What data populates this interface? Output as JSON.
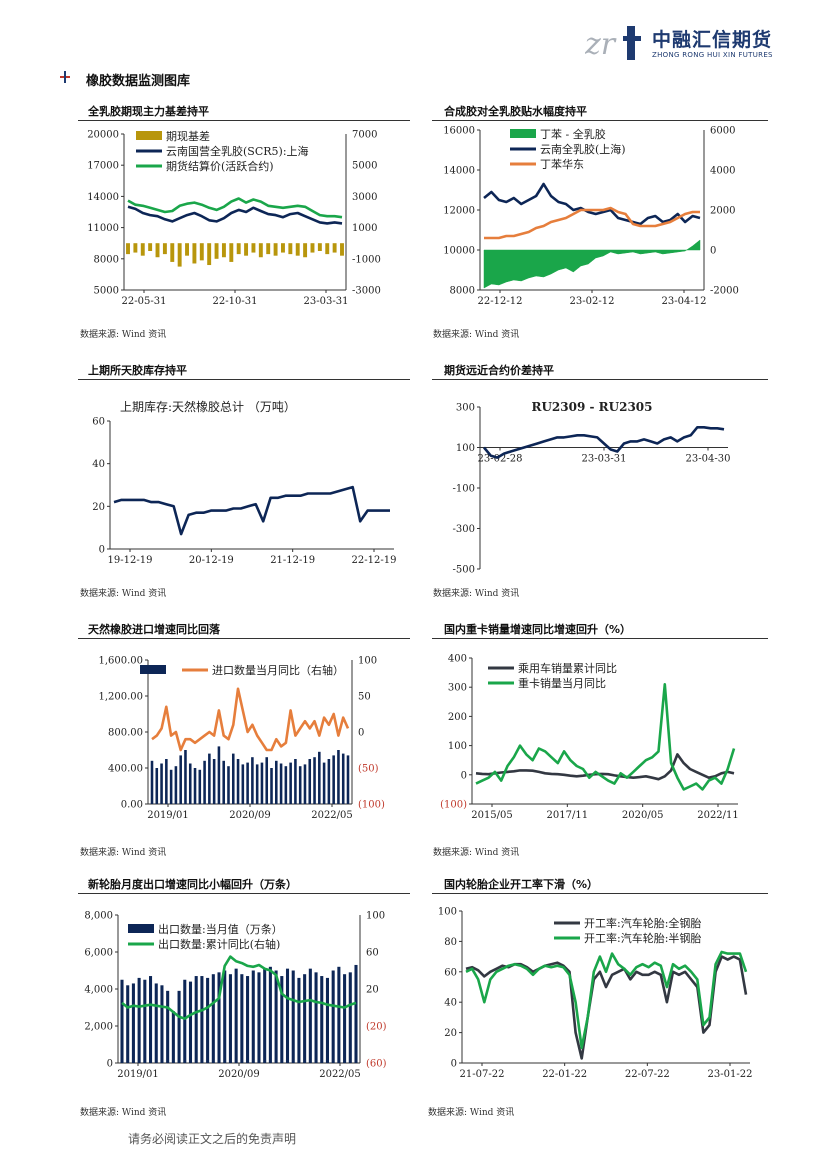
{
  "header": {
    "logo_cn": "中融汇信期货",
    "logo_en": "ZHONG RONG HUI XIN FUTURES",
    "section_title": "橡胶数据监测图库"
  },
  "footer": {
    "disclaimer": "请务必阅读正文之后的免责声明"
  },
  "source_label": "数据来源: Wind 资讯",
  "colors": {
    "navy": "#0d2656",
    "green": "#1aa64a",
    "gold": "#b8960c",
    "orange": "#e67e3c",
    "dark": "#333842",
    "red": "#c0392b"
  },
  "chart_data": [
    {
      "id": "c1",
      "type": "line",
      "title": "全乳胶期现主力基差持平",
      "x_ticks": [
        "22-05-31",
        "22-10-31",
        "23-03-31"
      ],
      "y_left": {
        "ticks": [
          "20000",
          "17000",
          "14000",
          "11000",
          "8000",
          "5000"
        ],
        "range": [
          5000,
          20000
        ]
      },
      "y_right": {
        "ticks": [
          "7000",
          "5000",
          "3000",
          "1000",
          "-1000",
          "-3000"
        ],
        "range": [
          -3000,
          7000
        ]
      },
      "legend": [
        "期现基差",
        "云南国营全乳胶(SCR5):上海",
        "期货结算价(活跃合约)"
      ],
      "series": [
        {
          "name": "期现基差",
          "kind": "bar",
          "axis": "right",
          "color": "gold",
          "values": [
            -700,
            -600,
            -800,
            -500,
            -900,
            -700,
            -1200,
            -1500,
            -800,
            -1300,
            -1100,
            -1400,
            -1000,
            -900,
            -1200,
            -700,
            -800,
            -600,
            -900,
            -700,
            -800,
            -600,
            -700,
            -800,
            -900,
            -600,
            -500,
            -700,
            -600,
            -800
          ]
        },
        {
          "name": "云南国营全乳胶(SCR5):上海",
          "kind": "line",
          "axis": "left",
          "color": "navy",
          "values": [
            13000,
            12800,
            12400,
            12200,
            12100,
            11800,
            11600,
            11900,
            12200,
            12400,
            12100,
            11700,
            11600,
            11900,
            12400,
            12700,
            12500,
            12900,
            12600,
            12300,
            12200,
            12000,
            12300,
            12400,
            12100,
            11800,
            11500,
            11400,
            11500,
            11400
          ]
        },
        {
          "name": "期货结算价(活跃合约)",
          "kind": "line",
          "axis": "left",
          "color": "green",
          "values": [
            13600,
            13200,
            13100,
            12900,
            12700,
            12500,
            12600,
            13100,
            13300,
            13400,
            13200,
            12900,
            12700,
            13000,
            13500,
            13800,
            13400,
            13700,
            13500,
            13100,
            13000,
            12900,
            13000,
            13100,
            13000,
            12600,
            12200,
            12100,
            12100,
            12000
          ]
        }
      ]
    },
    {
      "id": "c2",
      "type": "line",
      "title": "合成胶对全乳胶贴水幅度持平",
      "x_ticks": [
        "22-12-12",
        "23-02-12",
        "23-04-12"
      ],
      "y_left": {
        "ticks": [
          "16000",
          "14000",
          "12000",
          "10000",
          "8000"
        ],
        "range": [
          8000,
          16000
        ]
      },
      "y_right": {
        "ticks": [
          "6000",
          "4000",
          "2000",
          "0",
          "-2000"
        ],
        "range": [
          -2000,
          6000
        ]
      },
      "legend": [
        "丁苯 - 全乳胶",
        "云南全乳胶(上海)",
        "丁苯华东"
      ],
      "series": [
        {
          "name": "丁苯 - 全乳胶",
          "kind": "area",
          "axis": "right",
          "color": "green",
          "values": [
            -1900,
            -1700,
            -1750,
            -1600,
            -1500,
            -1550,
            -1400,
            -1300,
            -1350,
            -1200,
            -1000,
            -900,
            -1100,
            -800,
            -700,
            -400,
            -300,
            -100,
            -200,
            -150,
            -100,
            -200,
            -150,
            -100,
            -200,
            -150,
            -100,
            -50,
            200,
            500
          ]
        },
        {
          "name": "云南全乳胶(上海)",
          "kind": "line",
          "axis": "left",
          "color": "navy",
          "values": [
            12600,
            12900,
            12500,
            12400,
            12600,
            12300,
            12500,
            12700,
            13300,
            12700,
            12400,
            12300,
            12000,
            12100,
            11900,
            11800,
            11900,
            12000,
            11600,
            11500,
            11400,
            11300,
            11600,
            11700,
            11400,
            11500,
            11800,
            11400,
            11700,
            11600
          ]
        },
        {
          "name": "丁苯华东",
          "kind": "line",
          "axis": "left",
          "color": "orange",
          "values": [
            10600,
            10600,
            10600,
            10700,
            10700,
            10800,
            10900,
            11100,
            11200,
            11400,
            11500,
            11600,
            11800,
            12000,
            12000,
            12000,
            12000,
            12100,
            11900,
            11800,
            11300,
            11200,
            11200,
            11200,
            11300,
            11400,
            11600,
            11800,
            11900,
            11900
          ]
        }
      ]
    },
    {
      "id": "c3",
      "type": "line",
      "title": "上期所天胶库存持平",
      "inner_title": "上期库存:天然橡胶总计 （万吨）",
      "x_ticks": [
        "19-12-19",
        "20-12-19",
        "21-12-19",
        "22-12-19"
      ],
      "y_left": {
        "ticks": [
          "60",
          "40",
          "20",
          "0"
        ],
        "range": [
          0,
          60
        ]
      },
      "series": [
        {
          "name": "上期库存:天然橡胶总计",
          "kind": "line",
          "axis": "left",
          "color": "navy",
          "values": [
            22,
            23,
            23,
            23,
            23,
            22,
            22,
            21,
            20,
            7,
            16,
            17,
            17,
            18,
            18,
            18,
            19,
            19,
            20,
            21,
            13,
            24,
            24,
            25,
            25,
            25,
            26,
            26,
            26,
            26,
            27,
            28,
            29,
            13,
            18,
            18,
            18,
            18
          ]
        }
      ]
    },
    {
      "id": "c4",
      "type": "line",
      "title": "期货远近合约价差持平",
      "inner_title": "RU2309 - RU2305",
      "x_ticks": [
        "23-02-28",
        "23-03-31",
        "23-04-30"
      ],
      "y_left": {
        "ticks": [
          "300",
          "100",
          "-100",
          "-300",
          "-500"
        ],
        "range": [
          -500,
          300
        ]
      },
      "series": [
        {
          "name": "RU2309 - RU2305",
          "kind": "line",
          "axis": "left",
          "color": "navy",
          "values": [
            100,
            60,
            50,
            70,
            80,
            90,
            100,
            110,
            120,
            130,
            140,
            150,
            150,
            155,
            160,
            160,
            155,
            150,
            120,
            90,
            80,
            120,
            130,
            130,
            140,
            130,
            120,
            140,
            150,
            130,
            150,
            160,
            200,
            200,
            195,
            195,
            190
          ]
        }
      ]
    },
    {
      "id": "c5",
      "type": "bar",
      "title": "天然橡胶进口增速同比回落",
      "x_ticks": [
        "2019/01",
        "2020/09",
        "2022/05"
      ],
      "y_left": {
        "ticks": [
          "1,600.00",
          "1,200.00",
          "800.00",
          "400.00",
          "0.00"
        ],
        "range": [
          0,
          1600
        ]
      },
      "y_right": {
        "ticks": [
          "100",
          "50",
          "0",
          "(50)",
          "(100)"
        ],
        "range": [
          -100,
          100
        ]
      },
      "legend": [
        "",
        "进口数量当月同比（右轴）"
      ],
      "series": [
        {
          "name": "",
          "kind": "bar",
          "axis": "left",
          "color": "navy",
          "values": [
            480,
            400,
            450,
            500,
            380,
            420,
            540,
            600,
            450,
            400,
            380,
            480,
            560,
            500,
            640,
            480,
            420,
            560,
            500,
            440,
            460,
            520,
            440,
            460,
            520,
            400,
            480,
            450,
            420,
            460,
            500,
            420,
            440,
            500,
            520,
            580,
            460,
            500,
            540,
            600,
            560,
            540
          ]
        },
        {
          "name": "进口数量当月同比（右轴）",
          "kind": "line",
          "axis": "right",
          "color": "orange",
          "values": [
            -10,
            -5,
            5,
            35,
            -5,
            0,
            -25,
            -10,
            -10,
            -15,
            -10,
            -5,
            0,
            -5,
            30,
            -5,
            -10,
            10,
            60,
            30,
            0,
            10,
            -5,
            -15,
            -25,
            -25,
            -10,
            -20,
            -15,
            30,
            -5,
            5,
            15,
            5,
            15,
            -5,
            20,
            10,
            25,
            -5,
            20,
            5
          ]
        }
      ]
    },
    {
      "id": "c6",
      "type": "line",
      "title": "国内重卡销量增速同比增速回升（%）",
      "x_ticks": [
        "2015/05",
        "2017/11",
        "2020/05",
        "2022/11"
      ],
      "y_left": {
        "ticks": [
          "400",
          "300",
          "200",
          "100",
          "0",
          "(100)"
        ],
        "range": [
          -100,
          400
        ]
      },
      "legend": [
        "乘用车销量累计同比",
        "重卡销量当月同比"
      ],
      "series": [
        {
          "name": "乘用车销量累计同比",
          "kind": "line",
          "axis": "left",
          "color": "dark",
          "values": [
            5,
            3,
            2,
            5,
            8,
            10,
            12,
            15,
            15,
            14,
            10,
            5,
            3,
            2,
            0,
            -3,
            -5,
            -3,
            0,
            2,
            3,
            2,
            -2,
            -5,
            -8,
            -10,
            -8,
            -5,
            -10,
            -15,
            -5,
            15,
            70,
            40,
            20,
            10,
            0,
            -10,
            -5,
            5,
            10,
            5
          ]
        },
        {
          "name": "重卡销量当月同比",
          "kind": "line",
          "axis": "left",
          "color": "green",
          "values": [
            -30,
            -20,
            -10,
            10,
            -20,
            30,
            60,
            100,
            70,
            50,
            90,
            80,
            60,
            40,
            80,
            50,
            30,
            20,
            -10,
            10,
            -5,
            -20,
            -30,
            5,
            -10,
            10,
            30,
            50,
            60,
            80,
            310,
            40,
            -10,
            -50,
            -40,
            -30,
            -50,
            -20,
            -10,
            -30,
            20,
            90
          ]
        }
      ]
    },
    {
      "id": "c7",
      "type": "bar",
      "title": "新轮胎月度出口增速同比小幅回升（万条）",
      "x_ticks": [
        "2019/01",
        "2020/09",
        "2022/05"
      ],
      "y_left": {
        "ticks": [
          "8,000",
          "6,000",
          "4,000",
          "2,000",
          "0"
        ],
        "range": [
          0,
          8000
        ]
      },
      "y_right": {
        "ticks": [
          "100",
          "60",
          "20",
          "(20)",
          "(60)"
        ],
        "range": [
          -60,
          100
        ]
      },
      "legend": [
        "出口数量:当月值（万条）",
        "出口数量:累计同比(右轴)"
      ],
      "series": [
        {
          "name": "出口数量:当月值（万条）",
          "kind": "bar",
          "axis": "left",
          "color": "navy",
          "values": [
            4500,
            4200,
            4300,
            4600,
            4500,
            4700,
            4300,
            4200,
            3900,
            2800,
            3900,
            4500,
            4400,
            4700,
            4700,
            4600,
            4800,
            4900,
            5000,
            4800,
            5100,
            4800,
            4700,
            5000,
            4900,
            5100,
            5200,
            5000,
            4700,
            5100,
            5000,
            4600,
            4800,
            5100,
            4900,
            4700,
            4600,
            5000,
            5200,
            4800,
            4900,
            5300
          ]
        },
        {
          "name": "出口数量:累计同比(右轴)",
          "kind": "line",
          "axis": "left_r",
          "color": "green",
          "values": [
            5,
            0,
            2,
            1,
            2,
            3,
            2,
            1,
            0,
            -5,
            -10,
            -12,
            -8,
            -5,
            -3,
            0,
            5,
            10,
            45,
            55,
            50,
            48,
            45,
            44,
            46,
            42,
            40,
            35,
            15,
            10,
            8,
            6,
            7,
            8,
            6,
            5,
            3,
            2,
            1,
            0,
            3,
            5
          ]
        }
      ]
    },
    {
      "id": "c8",
      "type": "line",
      "title": "国内轮胎企业开工率下滑（%）",
      "x_ticks": [
        "21-07-22",
        "22-01-22",
        "22-07-22",
        "23-01-22"
      ],
      "y_left": {
        "ticks": [
          "100",
          "80",
          "60",
          "40",
          "20",
          "0"
        ],
        "range": [
          0,
          100
        ]
      },
      "legend": [
        "开工率:汽车轮胎:全钢胎",
        "开工率:汽车轮胎:半钢胎"
      ],
      "series": [
        {
          "name": "开工率:汽车轮胎:全钢胎",
          "kind": "line",
          "axis": "left",
          "color": "dark",
          "values": [
            62,
            63,
            61,
            57,
            60,
            62,
            64,
            63,
            65,
            65,
            63,
            60,
            62,
            64,
            65,
            66,
            64,
            60,
            20,
            3,
            30,
            55,
            60,
            50,
            58,
            60,
            62,
            55,
            60,
            58,
            58,
            60,
            58,
            40,
            60,
            58,
            60,
            55,
            50,
            20,
            25,
            60,
            70,
            68,
            70,
            68,
            45
          ]
        },
        {
          "name": "开工率:汽车轮胎:半钢胎",
          "kind": "line",
          "axis": "left",
          "color": "green",
          "values": [
            60,
            62,
            55,
            40,
            55,
            60,
            62,
            64,
            65,
            64,
            62,
            58,
            62,
            64,
            63,
            64,
            63,
            58,
            40,
            10,
            30,
            60,
            70,
            60,
            72,
            65,
            62,
            58,
            63,
            65,
            63,
            66,
            64,
            50,
            65,
            62,
            64,
            60,
            55,
            25,
            30,
            65,
            73,
            72,
            72,
            72,
            60
          ]
        }
      ]
    }
  ]
}
